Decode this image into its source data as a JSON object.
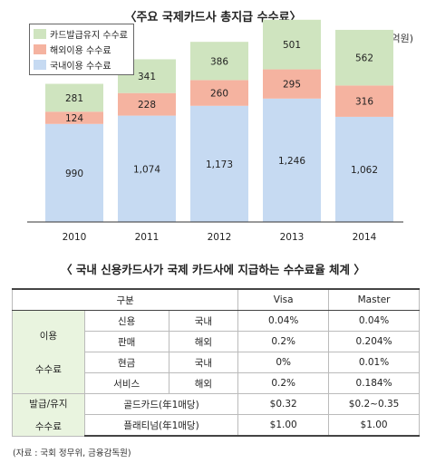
{
  "chart_title": "〈주요 국제카드사 총지급 수수료〉",
  "unit_label": "(단위: 억원)",
  "colors": {
    "domestic": "#c6daf2",
    "overseas": "#f5b3a0",
    "card_maintenance": "#cfe4bf"
  },
  "legend": [
    {
      "label": "카드발급유지 수수료",
      "color": "#cfe4bf"
    },
    {
      "label": "해외이용 수수료",
      "color": "#f5b3a0"
    },
    {
      "label": "국내이용 수수료",
      "color": "#c6daf2"
    }
  ],
  "chart_data": {
    "type": "bar",
    "stacked": true,
    "categories": [
      "2010",
      "2011",
      "2012",
      "2013",
      "2014"
    ],
    "series": [
      {
        "name": "국내이용 수수료",
        "values": [
          990,
          1074,
          1173,
          1246,
          1062
        ]
      },
      {
        "name": "해외이용 수수료",
        "values": [
          124,
          228,
          260,
          295,
          316
        ]
      },
      {
        "name": "카드발급유지 수수료",
        "values": [
          281,
          341,
          386,
          501,
          562
        ]
      }
    ],
    "value_labels": [
      [
        "990",
        "1,074",
        "1,173",
        "1,246",
        "1,062"
      ],
      [
        "124",
        "228",
        "260",
        "295",
        "316"
      ],
      [
        "281",
        "341",
        "386",
        "501",
        "562"
      ]
    ],
    "ylim": [
      0,
      2150
    ],
    "grid": false,
    "legend_position": "top-left"
  },
  "table_title": "〈 국내 신용카드사가 국제 카드사에 지급하는 수수료율 체계 〉",
  "table": {
    "headers": {
      "category": "구분",
      "visa": "Visa",
      "master": "Master"
    },
    "group1": {
      "line1": "이용",
      "line2": "수수료"
    },
    "group2": {
      "line1": "발급/유지",
      "line2": "수수료"
    },
    "rows": [
      {
        "sub": "신용",
        "region": "국내",
        "visa": "0.04%",
        "master": "0.04%"
      },
      {
        "sub": "판매",
        "region": "해외",
        "visa": "0.2%",
        "master": "0.204%"
      },
      {
        "sub": "현금",
        "region": "국내",
        "visa": "0%",
        "master": "0.01%"
      },
      {
        "sub": "서비스",
        "region": "해외",
        "visa": "0.2%",
        "master": "0.184%"
      },
      {
        "sub": "골드카드(年1매당)",
        "visa": "$0.32",
        "master": "$0.2~0.35"
      },
      {
        "sub": "플래티넘(年1매당)",
        "visa": "$1.00",
        "master": "$1.00"
      }
    ]
  },
  "source_note": "(자료 : 국회 정무위, 금융감독원)"
}
